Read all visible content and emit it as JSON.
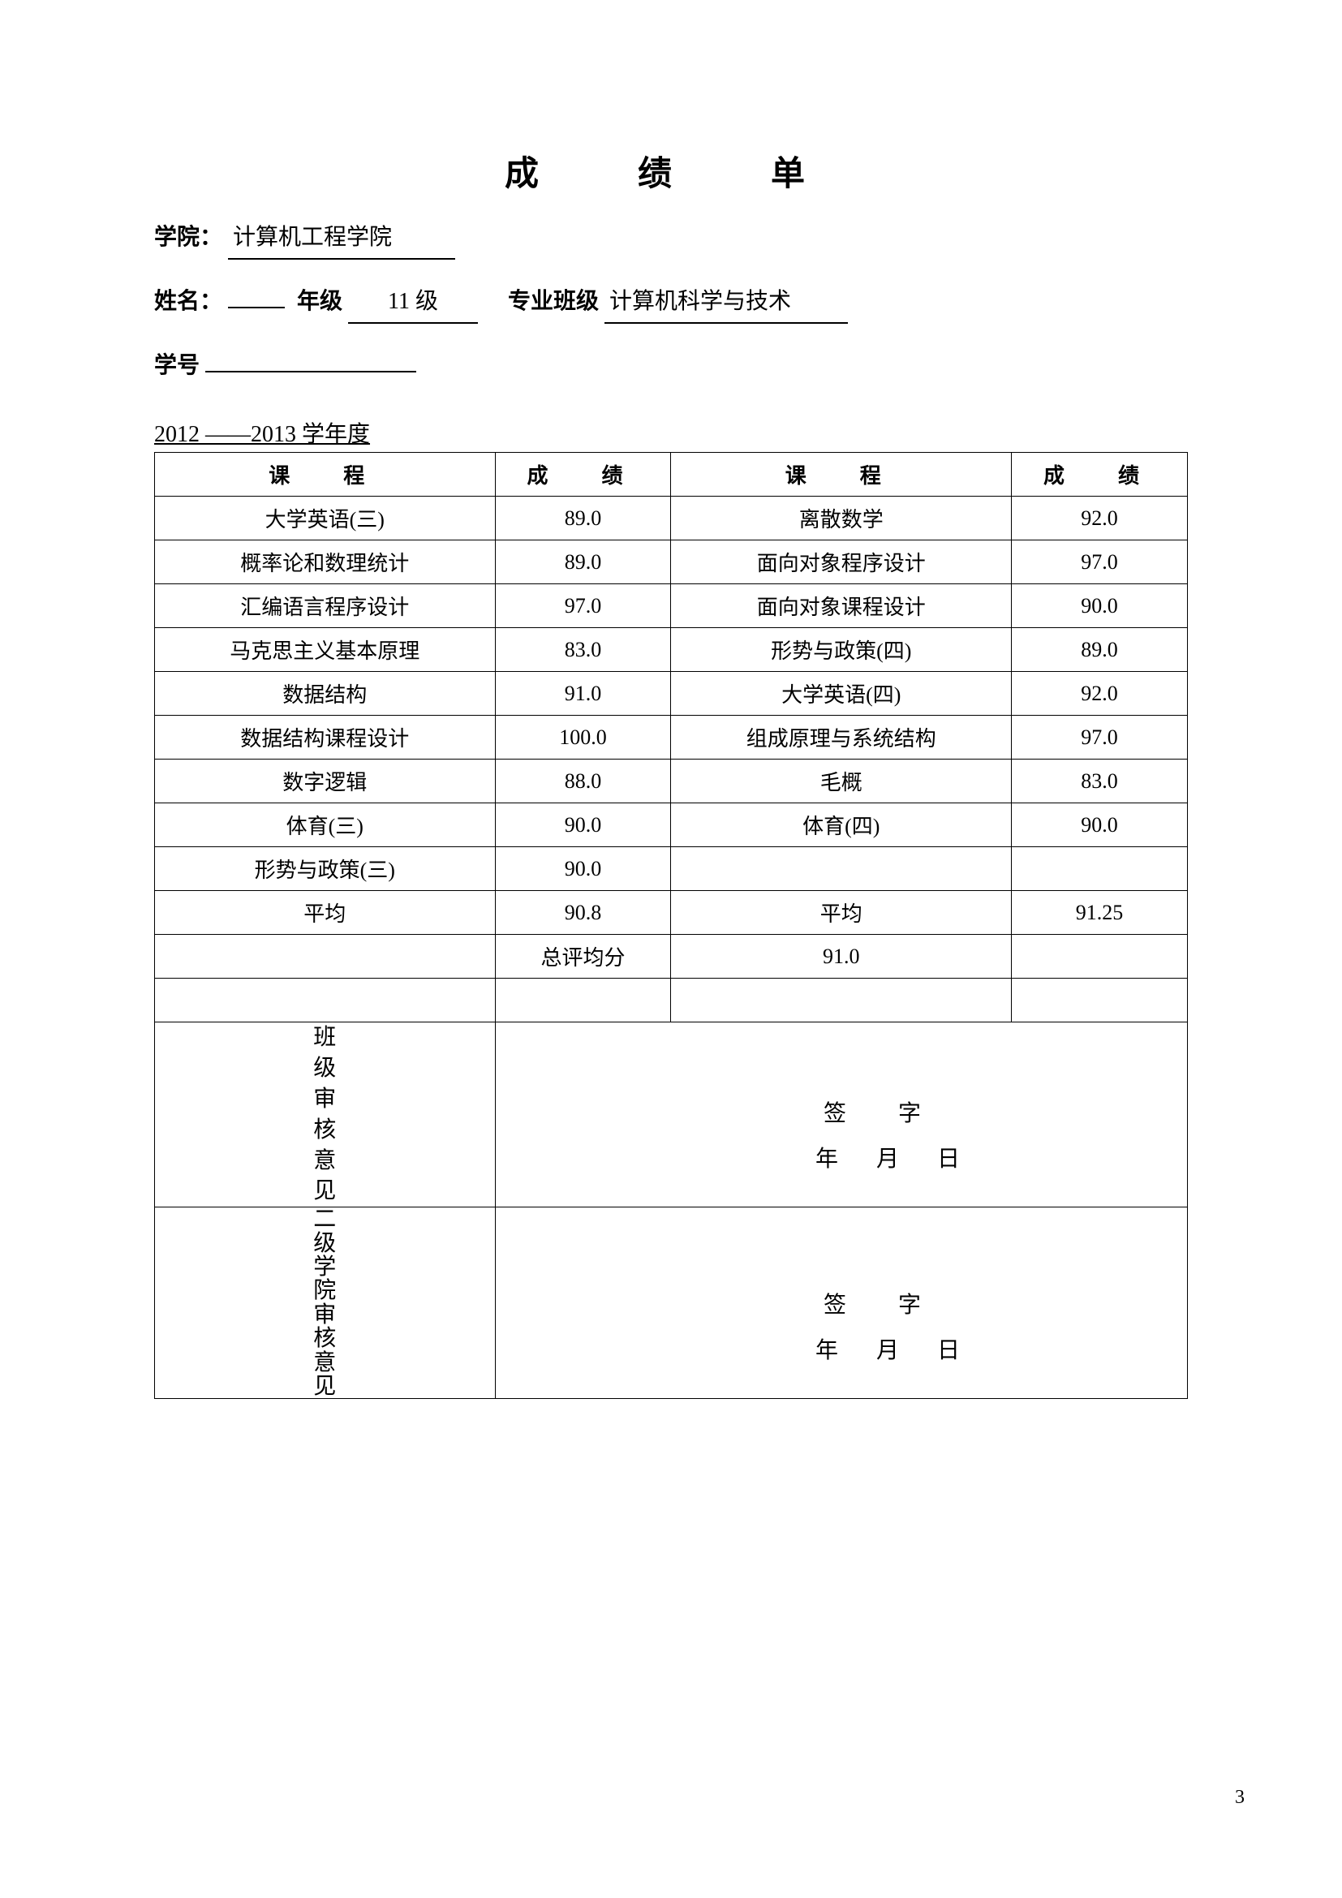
{
  "title": "成　绩　单",
  "labels": {
    "college": "学院：",
    "name": "姓名：",
    "grade": "年级",
    "class": "专业班级",
    "student_id": "学号",
    "academic_year_suffix": "学年度",
    "course": "课　程",
    "score": "成　绩",
    "avg": "平均",
    "total_avg": "总评均分",
    "sign": "签　字",
    "year": "年",
    "month": "月",
    "day": "日"
  },
  "header": {
    "college": "计算机工程学院",
    "name": "",
    "grade": "11 级",
    "class": "计算机科学与技术",
    "student_id": "",
    "year_from": "2012",
    "year_to": "2013"
  },
  "table": {
    "rows": [
      {
        "c1": "大学英语(三)",
        "s1": "89.0",
        "c2": "离散数学",
        "s2": "92.0"
      },
      {
        "c1": "概率论和数理统计",
        "s1": "89.0",
        "c2": "面向对象程序设计",
        "s2": "97.0"
      },
      {
        "c1": "汇编语言程序设计",
        "s1": "97.0",
        "c2": "面向对象课程设计",
        "s2": "90.0"
      },
      {
        "c1": "马克思主义基本原理",
        "s1": "83.0",
        "c2": "形势与政策(四)",
        "s2": "89.0"
      },
      {
        "c1": "数据结构",
        "s1": "91.0",
        "c2": "大学英语(四)",
        "s2": "92.0"
      },
      {
        "c1": "数据结构课程设计",
        "s1": "100.0",
        "c2": "组成原理与系统结构",
        "s2": "97.0"
      },
      {
        "c1": "数字逻辑",
        "s1": "88.0",
        "c2": "毛概",
        "s2": "83.0"
      },
      {
        "c1": "体育(三)",
        "s1": "90.0",
        "c2": "体育(四)",
        "s2": "90.0"
      },
      {
        "c1": "形势与政策(三)",
        "s1": "90.0",
        "c2": "",
        "s2": ""
      }
    ],
    "avg_left": "90.8",
    "avg_right": "91.25",
    "total_avg": "91.0"
  },
  "signatures": {
    "block1_label": "班级审核意见",
    "block2_label": "二级学院审核意见"
  },
  "page_number": "3"
}
